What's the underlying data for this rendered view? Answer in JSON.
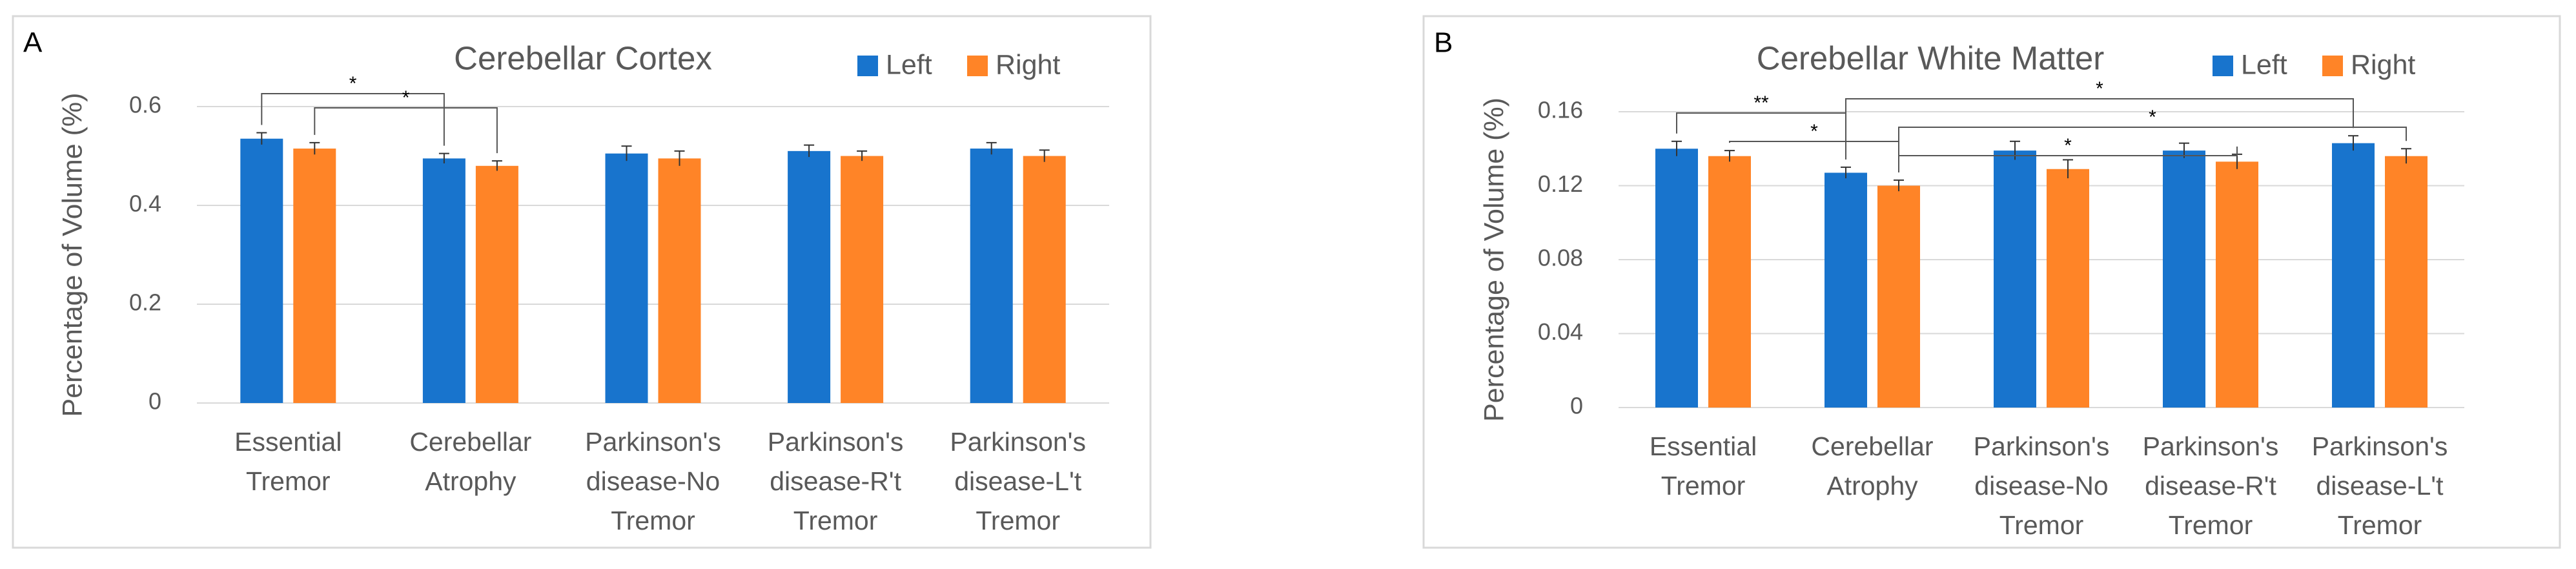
{
  "chart_data": [
    {
      "type": "bar",
      "panel": "A",
      "title": "Cerebellar Cortex",
      "y_label": "Percentage of Volume (%)",
      "categories": [
        [
          "Essential",
          "Tremor"
        ],
        [
          "Cerebellar",
          "Atrophy"
        ],
        [
          "Parkinson's",
          "disease-No",
          "Tremor"
        ],
        [
          "Parkinson's",
          "disease-R't",
          "Tremor"
        ],
        [
          "Parkinson's",
          "disease-L't",
          "Tremor"
        ]
      ],
      "series": [
        {
          "name": "Left",
          "color": "#1874cd",
          "values": [
            0.535,
            0.495,
            0.505,
            0.51,
            0.515
          ],
          "errors": [
            0.012,
            0.01,
            0.015,
            0.012,
            0.012
          ]
        },
        {
          "name": "Right",
          "color": "#ff8427",
          "values": [
            0.515,
            0.48,
            0.495,
            0.5,
            0.5
          ],
          "errors": [
            0.012,
            0.01,
            0.015,
            0.01,
            0.012
          ]
        }
      ],
      "ylim": [
        0,
        0.6
      ],
      "yticks": [
        0,
        0.2,
        0.4,
        0.6
      ],
      "grid": true,
      "legend": "top-right",
      "significance": [
        {
          "label": "*",
          "from": {
            "series": 0,
            "category": 0
          },
          "to": {
            "series": 0,
            "category": 1
          }
        },
        {
          "label": "*",
          "from": {
            "series": 1,
            "category": 0
          },
          "to": {
            "series": 1,
            "category": 1
          }
        }
      ]
    },
    {
      "type": "bar",
      "panel": "B",
      "title": "Cerebellar White Matter",
      "y_label": "Percentage of Volume (%)",
      "categories": [
        [
          "Essential",
          "Tremor"
        ],
        [
          "Cerebellar",
          "Atrophy"
        ],
        [
          "Parkinson's",
          "disease-No",
          "Tremor"
        ],
        [
          "Parkinson's",
          "disease-R't",
          "Tremor"
        ],
        [
          "Parkinson's",
          "disease-L't",
          "Tremor"
        ]
      ],
      "series": [
        {
          "name": "Left",
          "color": "#1874cd",
          "values": [
            0.14,
            0.127,
            0.139,
            0.139,
            0.143
          ],
          "errors": [
            0.004,
            0.003,
            0.005,
            0.004,
            0.004
          ]
        },
        {
          "name": "Right",
          "color": "#ff8427",
          "values": [
            0.136,
            0.12,
            0.129,
            0.133,
            0.136
          ],
          "errors": [
            0.003,
            0.003,
            0.005,
            0.004,
            0.004
          ]
        }
      ],
      "ylim": [
        0,
        0.16
      ],
      "yticks": [
        0,
        0.04,
        0.08,
        0.12,
        0.16
      ],
      "grid": true,
      "legend": "top-right",
      "significance": [
        {
          "label": "*",
          "from": {
            "series": 0,
            "category": 1
          },
          "to": {
            "series": 0,
            "category": 4
          }
        },
        {
          "label": "**",
          "from": {
            "series": 0,
            "category": 0
          },
          "to": {
            "series": 0,
            "category": 1
          }
        },
        {
          "label": "*",
          "from": {
            "series": 1,
            "category": 1
          },
          "to": {
            "series": 1,
            "category": 4
          }
        },
        {
          "label": "*",
          "from": {
            "series": 1,
            "category": 0
          },
          "to": {
            "series": 1,
            "category": 1
          }
        },
        {
          "label": "*",
          "from": {
            "series": 1,
            "category": 1
          },
          "to": {
            "series": 1,
            "category": 3
          }
        }
      ]
    }
  ]
}
